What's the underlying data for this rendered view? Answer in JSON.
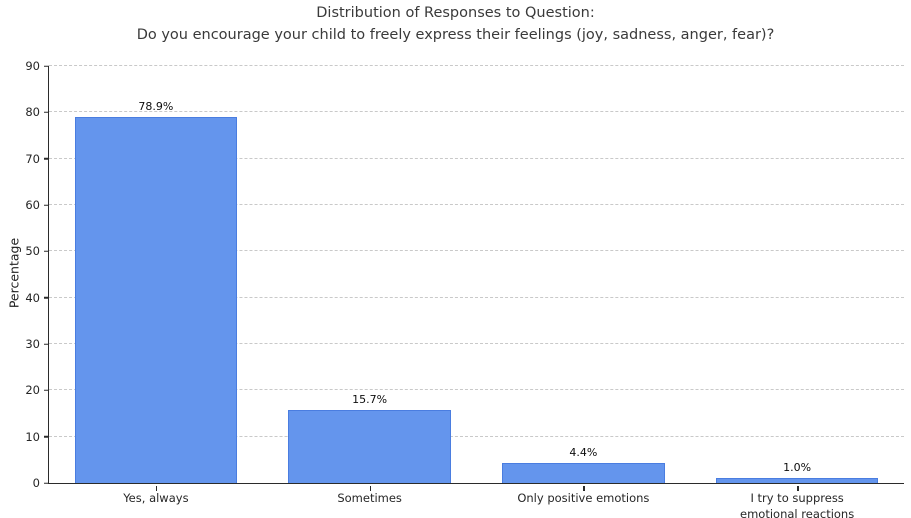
{
  "title": {
    "line1": "Distribution of Responses to Question:",
    "line2": "Do you encourage your child to freely express their feelings (joy, sadness, anger, fear)?"
  },
  "chart_data": {
    "type": "bar",
    "title": "Distribution of Responses to Question:\nDo you encourage your child to freely express their feelings (joy, sadness, anger, fear)?",
    "categories": [
      "Yes, always",
      "Sometimes",
      "Only positive emotions",
      "I try to suppress emotional reactions"
    ],
    "values": [
      78.9,
      15.7,
      4.4,
      1.0
    ],
    "value_labels": [
      "78.9%",
      "15.7%",
      "4.4%",
      "1.0%"
    ],
    "xlabel": "",
    "ylabel": "Percentage",
    "ylim": [
      0,
      90
    ],
    "ytick_step": 10,
    "ytick_labels": [
      "0",
      "10",
      "20",
      "30",
      "40",
      "50",
      "60",
      "70",
      "80",
      "90"
    ],
    "grid": "horizontal-dashed",
    "legend_position": "none",
    "bar_color": "#6495ed",
    "bar_edge_color": "#4a7de0"
  }
}
